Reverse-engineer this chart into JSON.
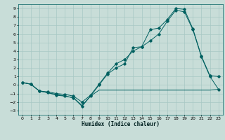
{
  "xlabel": "Humidex (Indice chaleur)",
  "bg_color": "#c8ddd8",
  "grid_color": "#a8c8c4",
  "line_color": "#006060",
  "xlim": [
    -0.5,
    23.5
  ],
  "ylim": [
    -3.5,
    9.5
  ],
  "xticks": [
    0,
    1,
    2,
    3,
    4,
    5,
    6,
    7,
    8,
    9,
    10,
    11,
    12,
    13,
    14,
    15,
    16,
    17,
    18,
    19,
    20,
    21,
    22,
    23
  ],
  "yticks": [
    -3,
    -2,
    -1,
    0,
    1,
    2,
    3,
    4,
    5,
    6,
    7,
    8,
    9
  ],
  "curve1_x": [
    0,
    1,
    2,
    3,
    4,
    5,
    6,
    7,
    8,
    9,
    10,
    11,
    12,
    13,
    14,
    15,
    16,
    17,
    18,
    19,
    20,
    21,
    22,
    23
  ],
  "curve1_y": [
    0.3,
    0.1,
    -0.7,
    -0.9,
    -1.1,
    -1.3,
    -1.5,
    -2.4,
    -1.3,
    -0.6,
    -0.6,
    -0.6,
    -0.6,
    -0.6,
    -0.6,
    -0.6,
    -0.6,
    -0.6,
    -0.6,
    -0.6,
    -0.6,
    -0.6,
    -0.6,
    -0.5
  ],
  "curve2_x": [
    0,
    1,
    2,
    3,
    4,
    5,
    6,
    7,
    8,
    9,
    10,
    11,
    12,
    13,
    14,
    15,
    16,
    17,
    18,
    19,
    20,
    21,
    22,
    23
  ],
  "curve2_y": [
    0.3,
    0.1,
    -0.7,
    -0.9,
    -1.2,
    -1.3,
    -1.5,
    -2.5,
    -1.3,
    0.0,
    1.3,
    2.0,
    2.5,
    4.4,
    4.5,
    6.5,
    6.7,
    7.7,
    9.0,
    8.9,
    6.6,
    3.4,
    1.1,
    1.0
  ],
  "curve3_x": [
    0,
    1,
    2,
    3,
    4,
    5,
    6,
    7,
    8,
    9,
    10,
    11,
    12,
    13,
    14,
    15,
    16,
    17,
    18,
    19,
    20,
    21,
    22,
    23
  ],
  "curve3_y": [
    0.3,
    0.1,
    -0.7,
    -0.8,
    -1.0,
    -1.1,
    -1.3,
    -2.0,
    -1.2,
    0.1,
    1.4,
    2.5,
    3.0,
    4.0,
    4.5,
    5.2,
    6.0,
    7.5,
    8.8,
    8.6,
    6.5,
    3.3,
    1.0,
    -0.5
  ]
}
